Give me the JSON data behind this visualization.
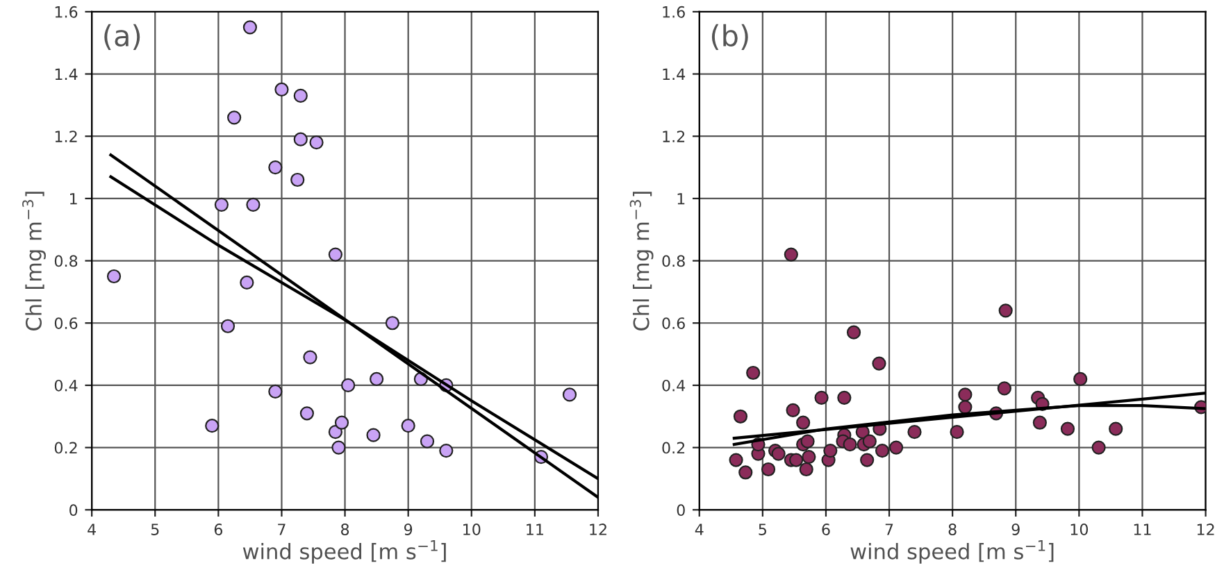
{
  "chart_data": [
    {
      "type": "scatter",
      "title": "(a)",
      "xlabel": "wind speed [m s$^{−1}$]",
      "ylabel": "Chl [mg m$^{−3}$]",
      "xlim": [
        4,
        12
      ],
      "ylim": [
        0,
        1.6
      ],
      "xticks": [
        4,
        5,
        6,
        7,
        8,
        9,
        10,
        11,
        12
      ],
      "yticks": [
        0,
        0.2,
        0.4,
        0.6,
        0.8,
        1,
        1.2,
        1.4,
        1.6
      ],
      "grid": true,
      "legend": false,
      "series": [
        {
          "marker": "circle",
          "color": "#c9a3f5",
          "x": [
            4.35,
            5.9,
            6.05,
            6.15,
            6.25,
            6.45,
            6.5,
            6.55,
            6.9,
            6.9,
            7.0,
            7.25,
            7.3,
            7.3,
            7.4,
            7.45,
            7.55,
            7.85,
            7.85,
            7.9,
            7.95,
            8.05,
            8.45,
            8.5,
            8.75,
            9.0,
            9.2,
            9.3,
            9.6,
            9.6,
            11.1,
            11.55
          ],
          "values": [
            0.75,
            0.27,
            0.98,
            0.59,
            1.26,
            0.73,
            1.55,
            0.98,
            1.1,
            0.38,
            1.35,
            1.06,
            1.33,
            1.19,
            0.31,
            0.49,
            1.18,
            0.82,
            0.25,
            0.2,
            0.28,
            0.4,
            0.24,
            0.42,
            0.6,
            0.27,
            0.42,
            0.22,
            0.19,
            0.4,
            0.17,
            0.37
          ]
        },
        {
          "type": "line",
          "color": "#000000",
          "x": [
            4.3,
            12
          ],
          "values": [
            1.14,
            0.04
          ]
        },
        {
          "type": "line",
          "color": "#000000",
          "x": [
            4.3,
            6,
            8,
            10,
            12
          ],
          "values": [
            1.07,
            0.85,
            0.61,
            0.35,
            0.1
          ]
        }
      ]
    },
    {
      "type": "scatter",
      "title": "(b)",
      "xlabel": "wind speed [m s$^{−1}$]",
      "ylabel": "Chl [mg m$^{−3}$]",
      "xlim": [
        4,
        12
      ],
      "ylim": [
        0,
        1.6
      ],
      "xticks": [
        4,
        5,
        6,
        7,
        8,
        9,
        10,
        11,
        12
      ],
      "yticks": [
        0,
        0.2,
        0.4,
        0.6,
        0.8,
        1,
        1.2,
        1.4,
        1.6
      ],
      "grid": true,
      "legend": false,
      "series": [
        {
          "marker": "circle",
          "color": "#8b2c5a",
          "x": [
            4.58,
            4.73,
            4.65,
            4.85,
            4.93,
            4.93,
            5.09,
            5.2,
            5.25,
            5.45,
            5.48,
            5.45,
            5.53,
            5.64,
            5.64,
            5.71,
            5.73,
            5.69,
            5.93,
            6.04,
            6.07,
            6.29,
            6.29,
            6.27,
            6.38,
            6.44,
            6.58,
            6.6,
            6.65,
            6.69,
            6.84,
            6.85,
            6.89,
            7.11,
            7.4,
            8.07,
            8.2,
            8.2,
            8.69,
            8.84,
            8.82,
            9.35,
            9.42,
            9.38,
            9.82,
            10.02,
            10.31,
            10.58,
            11.93
          ],
          "values": [
            0.16,
            0.12,
            0.3,
            0.44,
            0.18,
            0.21,
            0.13,
            0.19,
            0.18,
            0.82,
            0.32,
            0.16,
            0.16,
            0.28,
            0.21,
            0.22,
            0.17,
            0.13,
            0.36,
            0.16,
            0.19,
            0.36,
            0.24,
            0.22,
            0.21,
            0.57,
            0.25,
            0.21,
            0.16,
            0.22,
            0.47,
            0.26,
            0.19,
            0.2,
            0.25,
            0.25,
            0.37,
            0.33,
            0.31,
            0.64,
            0.39,
            0.36,
            0.34,
            0.28,
            0.26,
            0.42,
            0.2,
            0.26,
            0.33
          ]
        },
        {
          "type": "line",
          "color": "#000000",
          "x": [
            4.55,
            12
          ],
          "values": [
            0.23,
            0.375
          ]
        },
        {
          "type": "line",
          "color": "#000000",
          "x": [
            4.55,
            6,
            8,
            10,
            11,
            12
          ],
          "values": [
            0.21,
            0.26,
            0.305,
            0.335,
            0.335,
            0.325
          ]
        }
      ]
    }
  ]
}
